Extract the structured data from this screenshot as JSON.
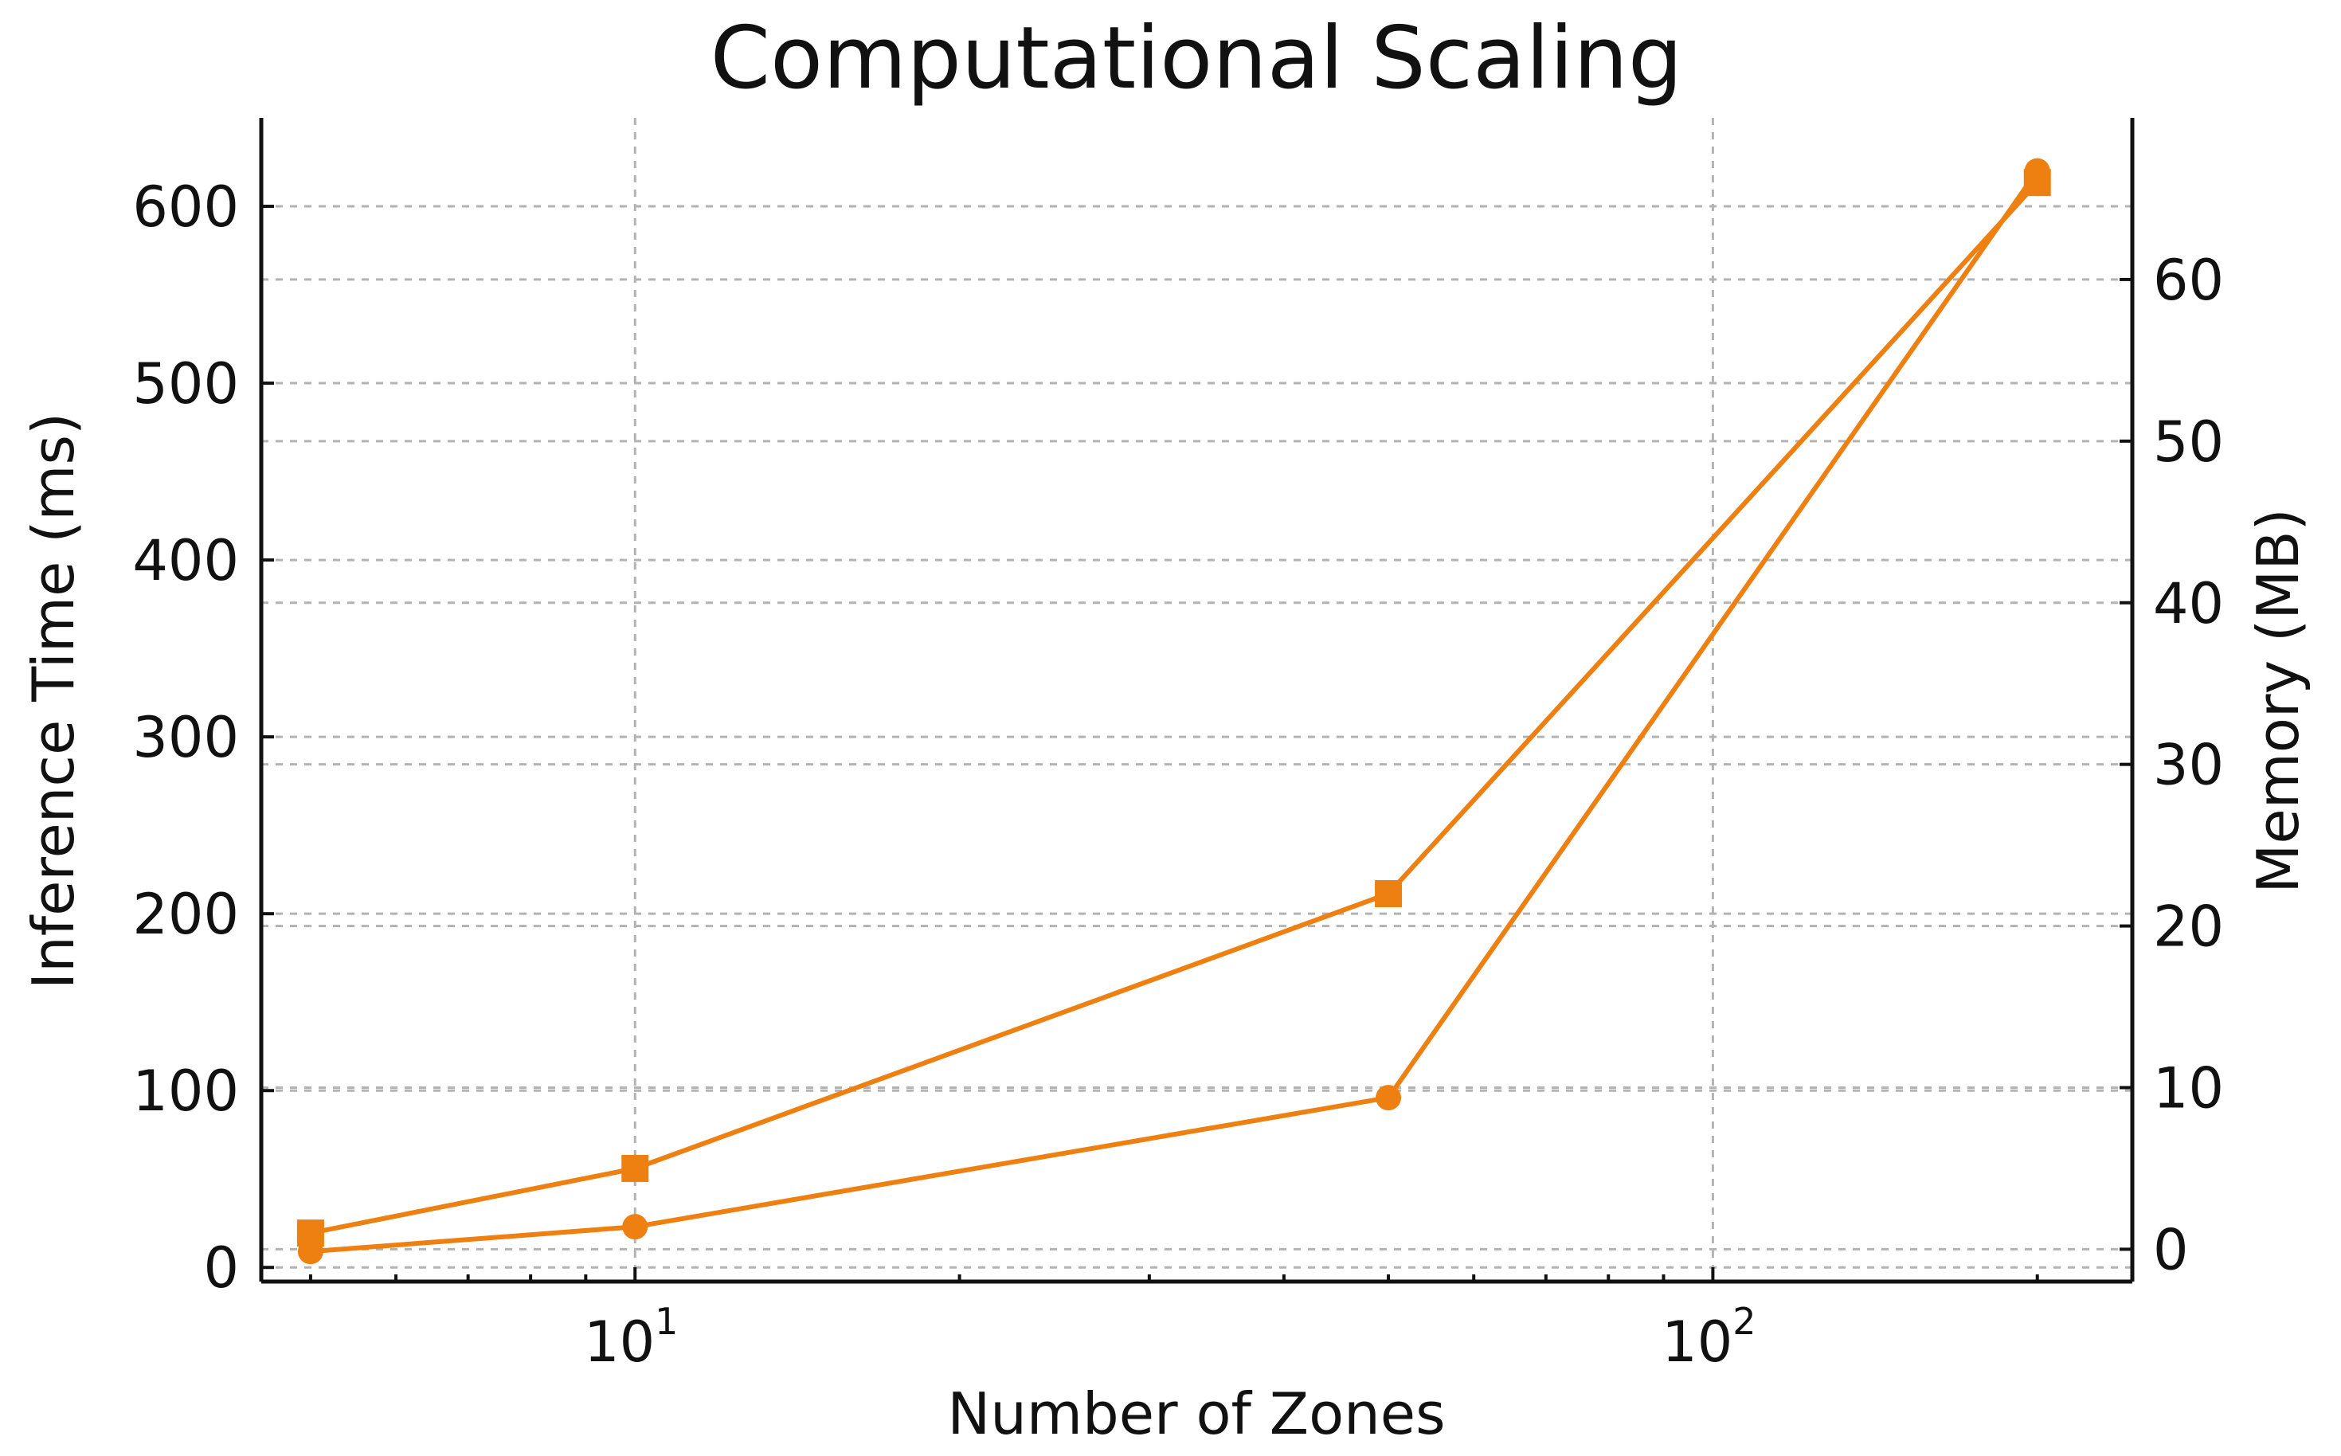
{
  "chart_data": {
    "type": "line",
    "title": "Computational Scaling",
    "xlabel": "Number of Zones",
    "ylabel_left": "Inference Time (ms)",
    "ylabel_right": "Memory (MB)",
    "x_scale": "log",
    "x_ticks": [
      {
        "value": 10,
        "base": "10",
        "exp": "1"
      },
      {
        "value": 100,
        "base": "10",
        "exp": "2"
      }
    ],
    "xlim": [
      4.5,
      245
    ],
    "y_left_ticks": [
      "0",
      "100",
      "200",
      "300",
      "400",
      "500",
      "600"
    ],
    "y_left_lim": [
      -8,
      650
    ],
    "y_right_ticks": [
      "0",
      "10",
      "20",
      "30",
      "40",
      "50",
      "60"
    ],
    "y_right_lim": [
      -2,
      70
    ],
    "grid": true,
    "color": "#EE8012",
    "series": [
      {
        "axis": "left",
        "marker": "circle",
        "x": [
          5,
          10,
          50,
          200
        ],
        "y": [
          9,
          23,
          96,
          620
        ]
      },
      {
        "axis": "right",
        "marker": "square",
        "x": [
          5,
          10,
          50,
          200
        ],
        "y": [
          1,
          5,
          22,
          66
        ]
      }
    ]
  }
}
